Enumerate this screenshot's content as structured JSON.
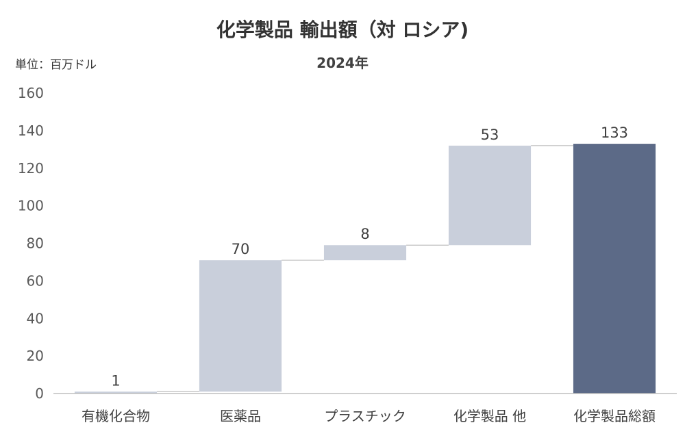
{
  "chart_data": {
    "type": "bar",
    "subtype": "waterfall",
    "title": "化学製品 輸出額（対 ロシア)",
    "subtitle": "2024年",
    "unit_label": "単位：百万ドル",
    "categories": [
      "有機化合物",
      "医薬品",
      "プラスチック",
      "化学製品 他",
      "化学製品総額"
    ],
    "values": [
      1,
      70,
      8,
      53,
      133
    ],
    "data_labels": [
      "1",
      "70",
      "8",
      "53",
      "133"
    ],
    "is_total": [
      false,
      false,
      false,
      false,
      true
    ],
    "ylim": [
      0,
      160
    ],
    "yticks": [
      0,
      20,
      40,
      60,
      80,
      100,
      120,
      140,
      160
    ],
    "grid": false,
    "legend": "none",
    "colors": {
      "increment": "#c9cfdb",
      "total": "#5c6a87",
      "connector": "#bfbfbf",
      "axis": "#bfbfbf"
    }
  }
}
